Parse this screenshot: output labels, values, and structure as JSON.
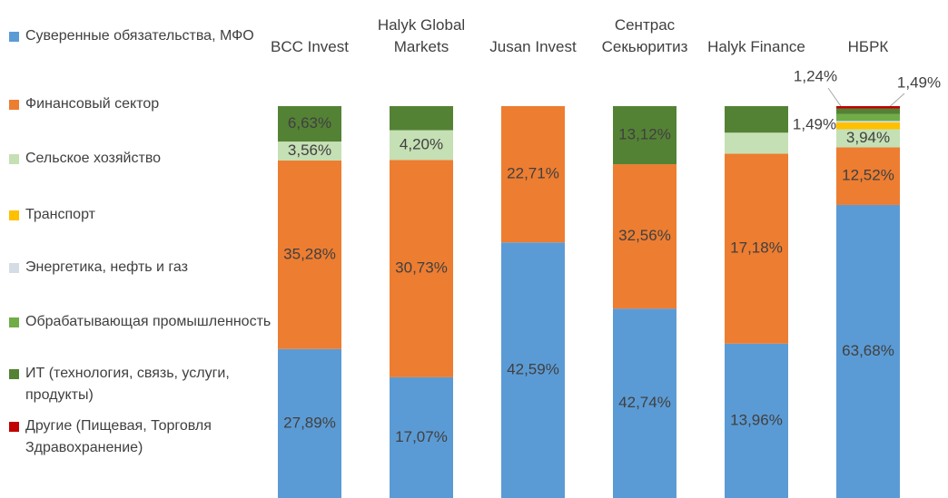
{
  "chart_data": {
    "type": "bar",
    "stacking": "percent",
    "categories": [
      "BCC Invest",
      "Halyk Global Markets",
      "Jusan Invest",
      "Сентрас Секьюритиз",
      "Halyk Finance",
      "НБРК"
    ],
    "series": [
      {
        "name": "Суверенные обязательства, МФО",
        "color": "#5b9bd5",
        "values": [
          27.89,
          17.07,
          42.59,
          42.74,
          13.96,
          63.68
        ],
        "value_labels": [
          "27,89%",
          "17,07%",
          "42,59%",
          "42,74%",
          "13,96%",
          "63,68%"
        ]
      },
      {
        "name": "Финансовый сектор",
        "color": "#ed7d31",
        "values": [
          35.28,
          30.73,
          22.71,
          32.56,
          17.18,
          12.52
        ],
        "value_labels": [
          "35,28%",
          "30,73%",
          "22,71%",
          "32,56%",
          "17,18%",
          "12,52%"
        ]
      },
      {
        "name": "Сельское хозяйство",
        "color": "#c5e0b4",
        "values": [
          3.56,
          4.2,
          null,
          null,
          1.9,
          3.94
        ],
        "value_labels": [
          "3,56%",
          "4,20%",
          null,
          null,
          null,
          "3,94%"
        ]
      },
      {
        "name": "Транспорт",
        "color": "#ffc000",
        "values": [
          null,
          null,
          null,
          null,
          null,
          1.49
        ],
        "value_labels": [
          null,
          null,
          null,
          null,
          null,
          "1,49%"
        ]
      },
      {
        "name": "Энергетика, нефть и газ",
        "color": "#d6dce5",
        "values": [
          null,
          null,
          null,
          null,
          null,
          0.3
        ],
        "value_labels": [
          null,
          null,
          null,
          null,
          null,
          null
        ]
      },
      {
        "name": "Обрабатывающая промышленность",
        "color": "#70ad47",
        "values": [
          null,
          null,
          null,
          null,
          null,
          1.49
        ],
        "value_labels": [
          null,
          null,
          null,
          null,
          null,
          "1,49%"
        ]
      },
      {
        "name": "ИТ (технология, связь, услуги, продукты)",
        "color": "#548235",
        "values": [
          6.63,
          3.4,
          null,
          13.12,
          2.4,
          1.24
        ],
        "value_labels": [
          "6,63%",
          null,
          null,
          "13,12%",
          null,
          "1,24%"
        ]
      },
      {
        "name": "Другие (Пищевая, Торговля Здравохранение)",
        "color": "#c00000",
        "values": [
          null,
          null,
          null,
          null,
          null,
          0.5
        ],
        "value_labels": [
          null,
          null,
          null,
          null,
          null,
          null
        ]
      }
    ],
    "legend": "left"
  }
}
